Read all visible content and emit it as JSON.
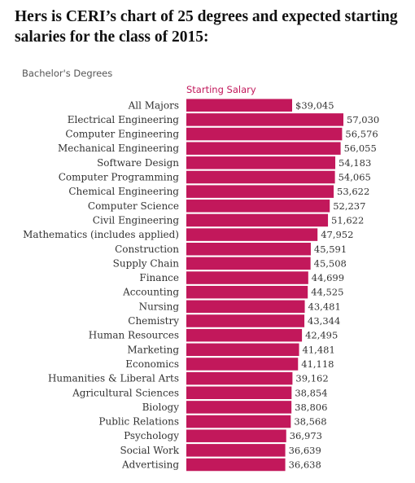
{
  "headline": "Hers is CERI’s chart of 25 degrees and expected starting salaries for the class of 2015:",
  "chart_data": {
    "type": "bar",
    "orientation": "horizontal",
    "section_label": "Bachelor's Degrees",
    "column_header": "Starting Salary",
    "bar_color": "#c2185b",
    "categories": [
      "All Majors",
      "Electrical Engineering",
      "Computer Engineering",
      "Mechanical Engineering",
      "Software Design",
      "Computer Programming",
      "Chemical Engineering",
      "Computer Science",
      "Civil Engineering",
      "Mathematics (includes applied)",
      "Construction",
      "Supply Chain",
      "Finance",
      "Accounting",
      "Nursing",
      "Chemistry",
      "Human Resources",
      "Marketing",
      "Economics",
      "Humanities & Liberal Arts",
      "Agricultural Sciences",
      "Biology",
      "Public Relations",
      "Psychology",
      "Social Work",
      "Advertising"
    ],
    "values": [
      39045,
      57030,
      56576,
      56055,
      54183,
      54065,
      53622,
      52237,
      51622,
      47952,
      45591,
      45508,
      44699,
      44525,
      43481,
      43344,
      42495,
      41481,
      41118,
      39162,
      38854,
      38806,
      38568,
      36973,
      36639,
      36638
    ],
    "value_labels": [
      "$39,045",
      "57,030",
      "56,576",
      "56,055",
      "54,183",
      "54,065",
      "53,622",
      "52,237",
      "51,622",
      "47,952",
      "45,591",
      "45,508",
      "44,699",
      "44,525",
      "43,481",
      "43,344",
      "42,495",
      "41,481",
      "41,118",
      "39,162",
      "38,854",
      "38,806",
      "38,568",
      "36,973",
      "36,639",
      "36,638"
    ]
  }
}
